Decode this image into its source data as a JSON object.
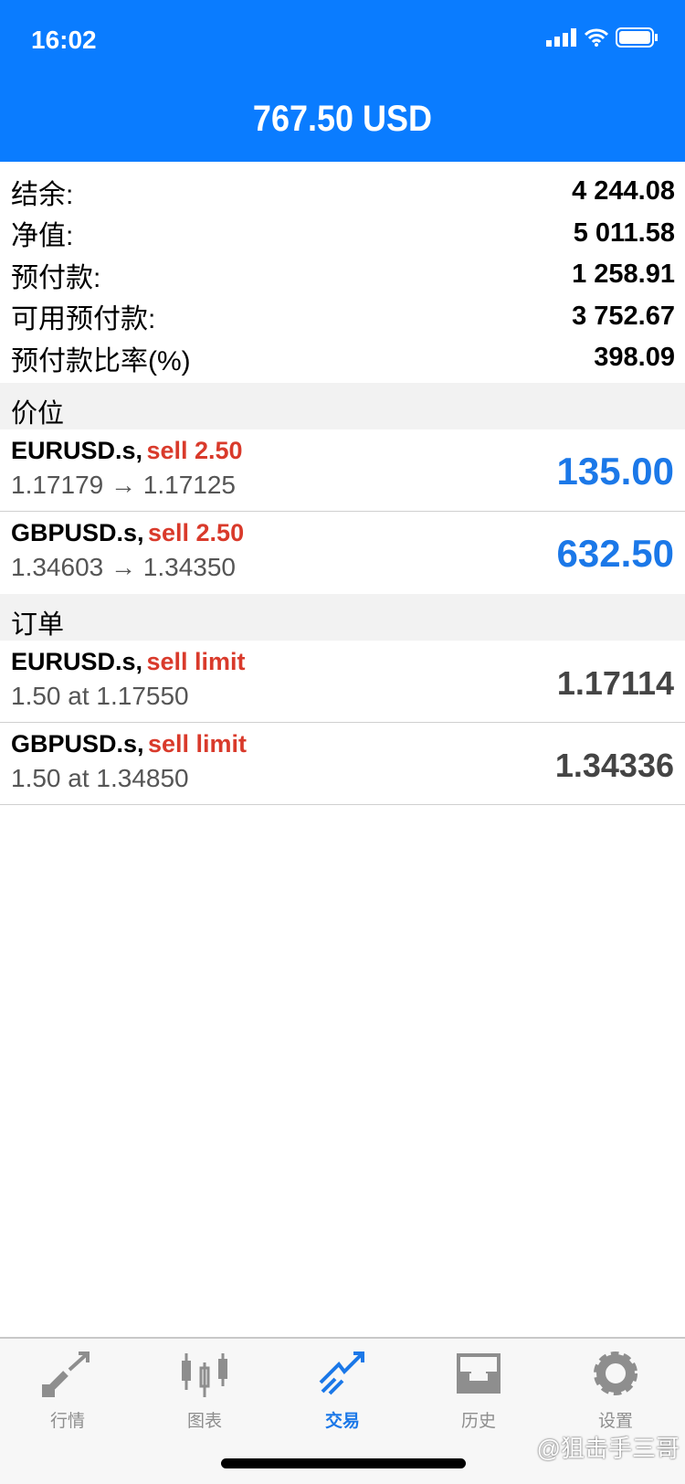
{
  "status_bar": {
    "time": "16:02"
  },
  "header": {
    "title": "767.50 USD"
  },
  "account": [
    {
      "label": "结余:",
      "value": "4 244.08"
    },
    {
      "label": "净值:",
      "value": "5 011.58"
    },
    {
      "label": "预付款:",
      "value": "1 258.91"
    },
    {
      "label": "可用预付款:",
      "value": "3 752.67"
    },
    {
      "label": "预付款比率(%)",
      "value": "398.09"
    }
  ],
  "positions": {
    "header": "价位",
    "items": [
      {
        "symbol": "EURUSD.s,",
        "side": "sell 2.50",
        "prices": "1.17179 → 1.17125",
        "profit": "135.00"
      },
      {
        "symbol": "GBPUSD.s,",
        "side": "sell 2.50",
        "prices": "1.34603 → 1.34350",
        "profit": "632.50"
      }
    ]
  },
  "orders": {
    "header": "订单",
    "items": [
      {
        "symbol": "EURUSD.s,",
        "side": "sell limit",
        "detail": "1.50 at 1.17550",
        "price": "1.17114"
      },
      {
        "symbol": "GBPUSD.s,",
        "side": "sell limit",
        "detail": "1.50 at 1.34850",
        "price": "1.34336"
      }
    ]
  },
  "tabs": [
    {
      "label": "行情",
      "icon": "quotes-icon"
    },
    {
      "label": "图表",
      "icon": "chart-icon"
    },
    {
      "label": "交易",
      "icon": "trade-icon",
      "active": true
    },
    {
      "label": "历史",
      "icon": "history-icon"
    },
    {
      "label": "设置",
      "icon": "settings-icon"
    }
  ],
  "watermark": "@狙击手三哥",
  "colors": {
    "accent": "#0a7cff",
    "sell": "#d93a2b",
    "profit": "#1b78e8"
  }
}
